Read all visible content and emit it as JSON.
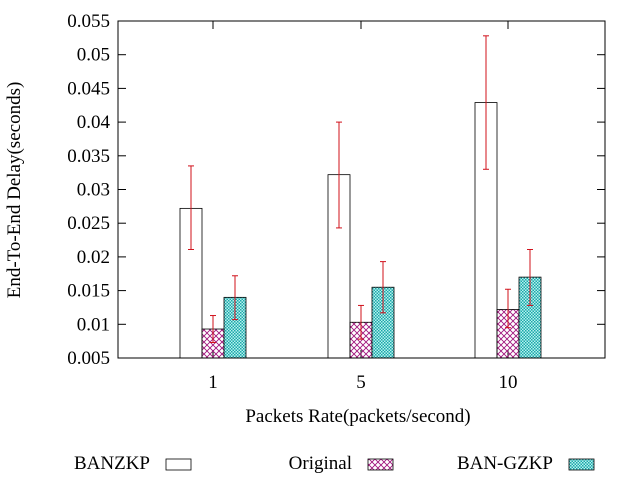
{
  "chart_data": {
    "type": "bar",
    "title": "",
    "xlabel": "Packets Rate(packets/second)",
    "ylabel": "End-To-End Delay(seconds)",
    "categories": [
      "1",
      "5",
      "10"
    ],
    "ylim": [
      0.005,
      0.055
    ],
    "yticks": [
      "0.005",
      "0.01",
      "0.015",
      "0.02",
      "0.025",
      "0.03",
      "0.035",
      "0.04",
      "0.045",
      "0.05",
      "0.055"
    ],
    "grid": false,
    "legend_position": "bottom",
    "series": [
      {
        "name": "BANZKP",
        "pattern": "empty",
        "color": "#000000",
        "values": [
          0.0272,
          0.0322,
          0.0429
        ],
        "error_low": [
          0.0211,
          0.0243,
          0.033
        ],
        "error_high": [
          0.0335,
          0.04,
          0.0528
        ]
      },
      {
        "name": "Original",
        "pattern": "crosshatch",
        "color": "#a0147d",
        "values": [
          0.0093,
          0.0103,
          0.0122
        ],
        "error_low": [
          0.0073,
          0.0078,
          0.0095
        ],
        "error_high": [
          0.0113,
          0.0128,
          0.0152
        ]
      },
      {
        "name": "BAN-GZKP",
        "pattern": "dots",
        "color": "#1aa8a8",
        "values": [
          0.014,
          0.0155,
          0.017
        ],
        "error_low": [
          0.0107,
          0.0117,
          0.0128
        ],
        "error_high": [
          0.0172,
          0.0193,
          0.0211
        ]
      }
    ],
    "error_bar_color": "#d0101a"
  }
}
